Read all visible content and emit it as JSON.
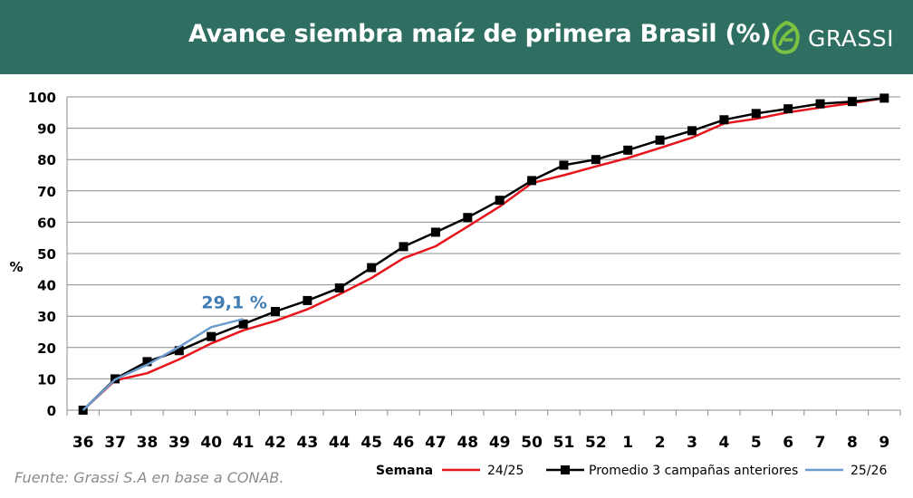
{
  "header": {
    "title": "Avance siembra maíz de primera Brasil (%)",
    "logo_text": "GRASSI",
    "bg_color": "#2f6f62"
  },
  "footer": {
    "source": "Fuente: Grassi S.A en base a CONAB."
  },
  "chart_data": {
    "type": "line",
    "title": "Avance siembra maíz de primera Brasil (%)",
    "xlabel": "Semana",
    "ylabel": "%",
    "ylim": [
      0,
      100
    ],
    "yticks": [
      0,
      10,
      20,
      30,
      40,
      50,
      60,
      70,
      80,
      90,
      100
    ],
    "grid": true,
    "legend": "bottom",
    "categories": [
      "36",
      "37",
      "38",
      "39",
      "40",
      "41",
      "42",
      "43",
      "44",
      "45",
      "46",
      "47",
      "48",
      "49",
      "50",
      "51",
      "52",
      "1",
      "2",
      "3",
      "4",
      "5",
      "6",
      "7",
      "8",
      "9"
    ],
    "series": [
      {
        "name": "24/25",
        "color": "#e8141c",
        "marker": "none",
        "values": [
          0,
          9.5,
          11.8,
          16.2,
          21.3,
          25.5,
          28.5,
          32.2,
          37,
          42.2,
          48.5,
          52.3,
          58.6,
          65,
          72.5,
          75,
          77.8,
          80.5,
          83.7,
          87,
          91.5,
          93,
          95.1,
          96.6,
          98,
          99.6
        ]
      },
      {
        "name": "Promedio 3 campañas anteriores",
        "color": "#000000",
        "marker": "square",
        "values": [
          0,
          10,
          15.5,
          19,
          23.5,
          27.5,
          31.5,
          35,
          39,
          45.5,
          52.2,
          56.8,
          61.5,
          67,
          73.3,
          78.2,
          80,
          83,
          86.2,
          89.2,
          92.7,
          94.7,
          96.2,
          97.8,
          98.5,
          99.6
        ]
      },
      {
        "name": "25/26",
        "color": "#6c9bcd",
        "marker": "none",
        "values": [
          0,
          9.8,
          14.5,
          20.2,
          26.5,
          29.1,
          null,
          null,
          null,
          null,
          null,
          null,
          null,
          null,
          null,
          null,
          null,
          null,
          null,
          null,
          null,
          null,
          null,
          null,
          null,
          null
        ]
      }
    ],
    "annotations": [
      {
        "text": "29,1 %",
        "category": "41",
        "value": 29.1,
        "color": "#3f7db4"
      }
    ]
  }
}
